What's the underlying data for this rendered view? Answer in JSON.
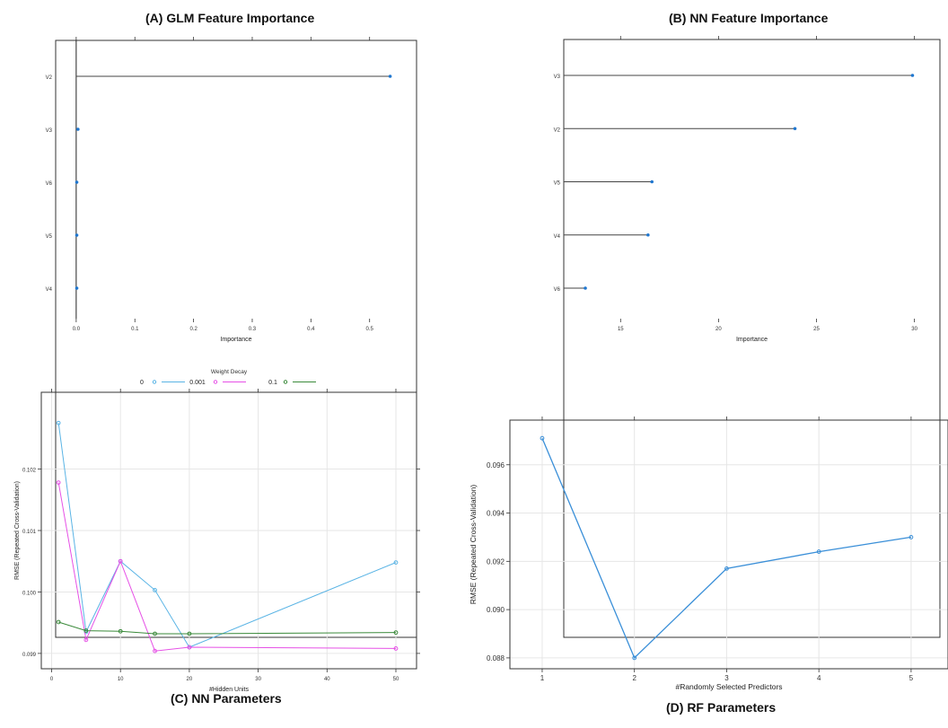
{
  "chart_data": [
    {
      "id": "A",
      "type": "dotplot",
      "title": "(A) GLM Feature Importance",
      "xlabel": "Importance",
      "xlim": [
        -0.035,
        0.58
      ],
      "xticks": [
        "0.0",
        "0.1",
        "0.2",
        "0.3",
        "0.4",
        "0.5"
      ],
      "categories": [
        "V2",
        "V3",
        "V6",
        "V5",
        "V4"
      ],
      "values": [
        0.535,
        0.003,
        0.001,
        0.001,
        0.001
      ],
      "color": "#1f77d0"
    },
    {
      "id": "B",
      "type": "dotplot",
      "title": "(B) NN Feature Importance",
      "xlabel": "Importance",
      "xlim": [
        12.1,
        31.3
      ],
      "xticks": [
        "15",
        "20",
        "25",
        "30"
      ],
      "categories": [
        "V3",
        "V2",
        "V5",
        "V4",
        "V6"
      ],
      "values": [
        29.9,
        23.9,
        16.6,
        16.4,
        13.2
      ],
      "color": "#1f77d0"
    },
    {
      "id": "C",
      "type": "line",
      "title": "(C) NN Parameters",
      "xlabel": "#Hidden Units",
      "ylabel": "RMSE (Repeated Cross-Validation)",
      "legend_title": "Weight Decay",
      "legend_position": "top",
      "xlim": [
        -1.5,
        53
      ],
      "ylim": [
        0.09875,
        0.10325
      ],
      "xticks": [
        "0",
        "10",
        "20",
        "30",
        "40",
        "50"
      ],
      "yticks": [
        "0.099",
        "0.100",
        "0.101",
        "0.102"
      ],
      "x": [
        1,
        5,
        10,
        15,
        20,
        50
      ],
      "series": [
        {
          "name": "0",
          "color": "#5ab4e5",
          "values": [
            0.10275,
            0.09935,
            0.1005,
            0.10003,
            0.0991,
            0.10048
          ]
        },
        {
          "name": "0.001",
          "color": "#e650e6",
          "values": [
            0.10178,
            0.09922,
            0.1005,
            0.09904,
            0.0991,
            0.09908
          ]
        },
        {
          "name": "0.1",
          "color": "#3a8a3a",
          "values": [
            0.09951,
            0.09937,
            0.09936,
            0.09932,
            0.09932,
            0.09934
          ]
        }
      ]
    },
    {
      "id": "D",
      "type": "line",
      "title": "(D) RF Parameters",
      "xlabel": "#Randomly Selected Predictors",
      "ylabel": "RMSE (Repeated Cross-Validation)",
      "xlim": [
        0.65,
        5.4
      ],
      "ylim": [
        0.08755,
        0.09785
      ],
      "xticks": [
        "1",
        "2",
        "3",
        "4",
        "5"
      ],
      "yticks": [
        "0.088",
        "0.090",
        "0.092",
        "0.094",
        "0.096"
      ],
      "x": [
        1,
        2,
        3,
        4,
        5
      ],
      "series": [
        {
          "name": "",
          "color": "#3a8fd8",
          "values": [
            0.0971,
            0.088,
            0.0917,
            0.0924,
            0.093
          ]
        }
      ]
    }
  ]
}
